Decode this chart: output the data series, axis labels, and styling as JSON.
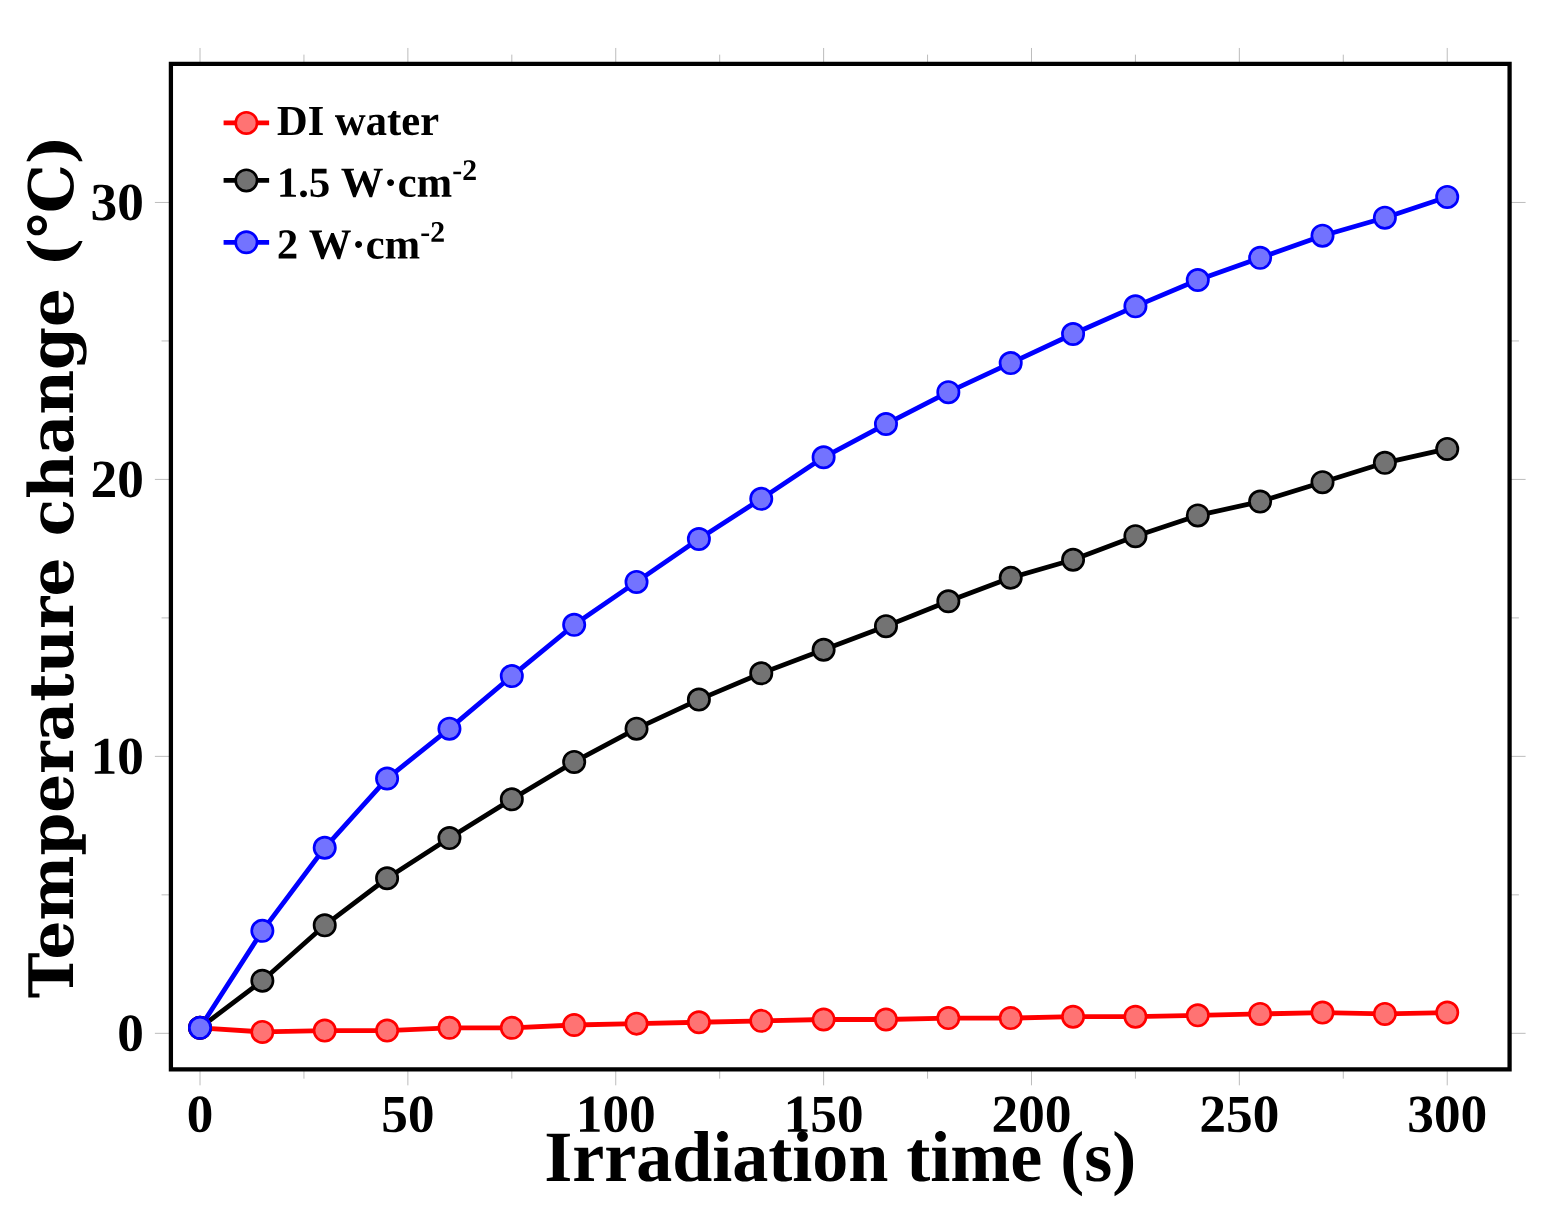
{
  "chart_data": {
    "type": "line",
    "xlabel": "Irradiation time (s)",
    "ylabel": "Temperature change (℃)",
    "x": [
      0,
      15,
      30,
      45,
      60,
      75,
      90,
      105,
      120,
      135,
      150,
      165,
      180,
      195,
      210,
      225,
      240,
      255,
      270,
      285,
      300
    ],
    "series": [
      {
        "name": "DI water",
        "color": "#ff0000",
        "values": [
          0.2,
          0.05,
          0.1,
          0.1,
          0.2,
          0.2,
          0.3,
          0.35,
          0.4,
          0.45,
          0.5,
          0.5,
          0.55,
          0.55,
          0.6,
          0.6,
          0.65,
          0.7,
          0.75,
          0.7,
          0.75
        ]
      },
      {
        "name": "1.5 W·cm$^{-2}$",
        "color": "#000000",
        "values": [
          0.2,
          1.9,
          3.9,
          5.6,
          7.05,
          8.45,
          9.8,
          11.0,
          12.05,
          13.0,
          13.85,
          14.7,
          15.6,
          16.45,
          17.1,
          17.95,
          18.7,
          19.2,
          19.9,
          20.6,
          21.1
        ]
      },
      {
        "name": "2 W·cm$^{-2}$",
        "color": "#0000ff",
        "values": [
          0.2,
          3.7,
          6.7,
          9.2,
          11.0,
          12.9,
          14.75,
          16.3,
          17.85,
          19.3,
          20.8,
          22.0,
          23.15,
          24.2,
          25.25,
          26.25,
          27.2,
          28.0,
          28.8,
          29.45,
          30.2
        ]
      }
    ],
    "xlim": [
      -7,
      315
    ],
    "ylim": [
      -1.3,
      35
    ],
    "xticks": [
      0,
      50,
      100,
      150,
      200,
      250,
      300
    ],
    "yticks": [
      0,
      10,
      20,
      30
    ],
    "grid": false,
    "legend": "top left",
    "marker": "circle",
    "line_style": "solid"
  }
}
